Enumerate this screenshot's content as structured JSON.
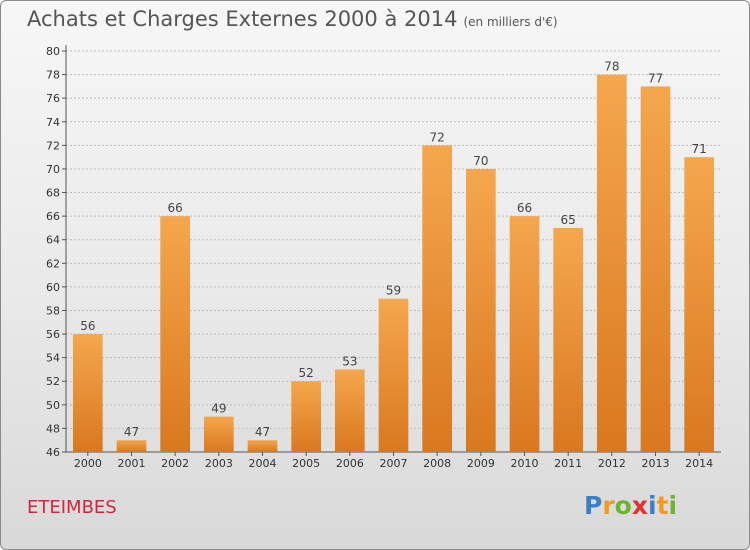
{
  "title": "Achats et Charges Externes 2000 à 2014",
  "subtitle": "(en milliers d'€)",
  "commune": "ETEIMBES",
  "logo": {
    "letters": [
      {
        "char": "P",
        "color": "#3a7fc9"
      },
      {
        "char": "r",
        "color": "#f29c1f"
      },
      {
        "char": "o",
        "color": "#6cb52d"
      },
      {
        "char": "x",
        "color": "#e2322e"
      },
      {
        "char": "i",
        "color": "#3a7fc9"
      },
      {
        "char": "t",
        "color": "#f29c1f"
      },
      {
        "char": "i",
        "color": "#6cb52d"
      }
    ]
  },
  "colors": {
    "bar_light": "#f5a74e",
    "bar_dark": "#d9781f",
    "grid": "#bbbbbb"
  },
  "chart_data": {
    "type": "bar",
    "title": "Achats et Charges Externes 2000 à 2014",
    "subtitle": "(en milliers d'€)",
    "xlabel": "",
    "ylabel": "",
    "categories": [
      "2000",
      "2001",
      "2002",
      "2003",
      "2004",
      "2005",
      "2006",
      "2007",
      "2008",
      "2009",
      "2010",
      "2011",
      "2012",
      "2013",
      "2014"
    ],
    "values": [
      56,
      47,
      66,
      49,
      47,
      52,
      53,
      59,
      72,
      70,
      66,
      65,
      78,
      77,
      71
    ],
    "ylim": [
      46,
      80
    ],
    "yticks": [
      46,
      48,
      50,
      52,
      54,
      56,
      58,
      60,
      62,
      64,
      66,
      68,
      70,
      72,
      74,
      76,
      78,
      80
    ],
    "grid": true,
    "data_labels": true
  }
}
